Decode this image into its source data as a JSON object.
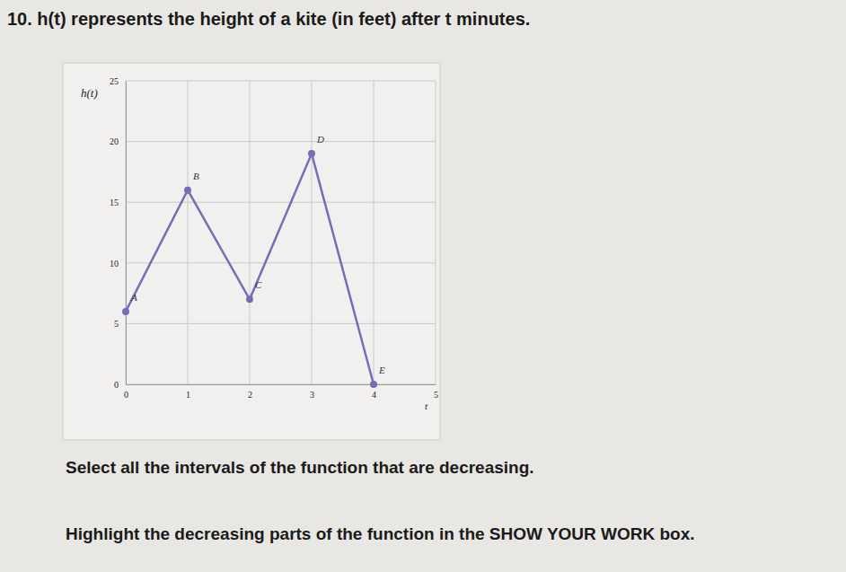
{
  "chart_data": {
    "type": "line",
    "title": "10. h(t) represents the height of a kite (in feet) after t minutes.",
    "x_label": "t",
    "y_label": "h(t)",
    "x": [
      0,
      1,
      2,
      3,
      4
    ],
    "series": [
      {
        "name": "h(t)",
        "color": "#7a6bb8",
        "values": [
          6,
          16,
          7,
          19,
          0
        ],
        "marker": "circle"
      }
    ],
    "xlim": [
      0,
      5
    ],
    "xticks": [
      0,
      1,
      2,
      3,
      4,
      5
    ],
    "ylim": [
      0,
      25
    ],
    "yticks": [
      0,
      5,
      10,
      15,
      20,
      25
    ],
    "grid": true,
    "annotations": [
      {
        "text": "A",
        "x": 0,
        "y": 6
      },
      {
        "text": "B",
        "x": 1,
        "y": 16
      },
      {
        "text": "C",
        "x": 2,
        "y": 7
      },
      {
        "text": "D",
        "x": 3,
        "y": 19
      },
      {
        "text": "E",
        "x": 4,
        "y": 0
      },
      {
        "text": "Select all the intervals of the function that are decreasing."
      },
      {
        "text": "Highlight the decreasing parts of the function in the SHOW YOUR WORK box."
      }
    ]
  }
}
